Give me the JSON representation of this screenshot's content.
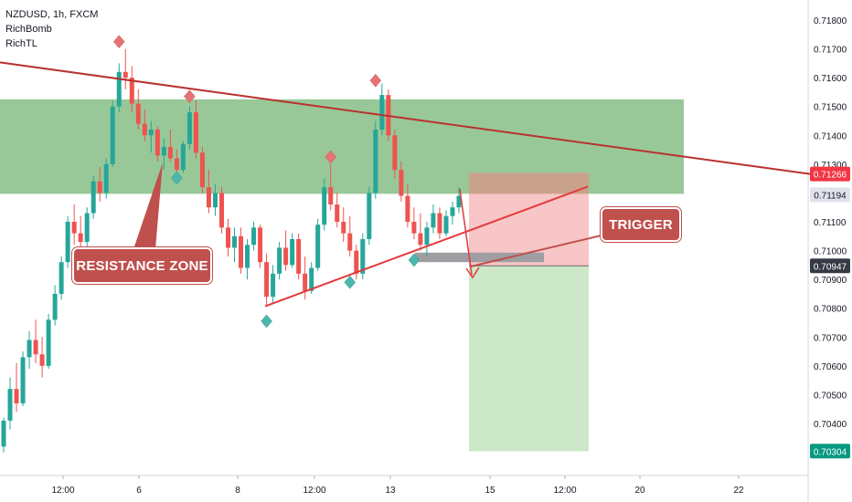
{
  "legend": {
    "symbol_line": "NZDUSD, 1h, FXCM",
    "indicator_1": "RichBomb",
    "indicator_2": "RichTL"
  },
  "annotations": {
    "resistance_label": "RESISTANCE ZONE",
    "trigger_label": "TRIGGER"
  },
  "price_tags": [
    {
      "label": "0.71266",
      "value": 0.71266,
      "bg": "#f23645",
      "fg": "#ffffff"
    },
    {
      "label": "0.71194",
      "value": 0.71194,
      "bg": "#e0e3eb",
      "fg": "#131722"
    },
    {
      "label": "0.70947",
      "value": 0.70947,
      "bg": "#363a45",
      "fg": "#ffffff"
    },
    {
      "label": "0.70304",
      "value": 0.70304,
      "bg": "#089981",
      "fg": "#ffffff"
    }
  ],
  "chart_data": {
    "type": "candlestick",
    "symbol": "NZDUSD",
    "timeframe": "1h",
    "source": "FXCM",
    "y_axis": {
      "range": [
        0.703,
        0.719
      ],
      "ticks": [
        "0.71800",
        "0.71700",
        "0.71600",
        "0.71500",
        "0.71400",
        "0.71300",
        "0.71200",
        "0.71100",
        "0.71000",
        "0.70900",
        "0.70800",
        "0.70700",
        "0.70600",
        "0.70500",
        "0.70400"
      ]
    },
    "x_axis": {
      "ticks": [
        "12:00",
        "6",
        "8",
        "12:00",
        "13",
        "15",
        "12:00",
        "20",
        "22"
      ]
    },
    "zones": {
      "resistance_zone": {
        "top": 0.71525,
        "bottom": 0.71197,
        "color": "#8dc28d"
      },
      "stop_loss_box": {
        "top": 0.7127,
        "bottom": 0.70947,
        "color": "#f7bcbc"
      },
      "take_profit_box": {
        "top": 0.70947,
        "bottom": 0.70304,
        "color": "#cce8c8"
      },
      "trigger_bar": {
        "top": 0.70993,
        "bottom": 0.7096,
        "color": "#9e9ea3"
      }
    },
    "lines": [
      {
        "name": "descending trendline",
        "from": [
          0,
          0.71653
        ],
        "to": [
          888,
          0.71265
        ],
        "color": "#b8312f"
      },
      {
        "name": "ascending support",
        "from": [
          290,
          0.70807
        ],
        "to": [
          643,
          0.71222
        ],
        "color": "#e33a3a"
      }
    ],
    "candles": [
      [
        0,
        0.7032,
        0.7042,
        0.703,
        0.7041
      ],
      [
        0,
        0.7041,
        0.7056,
        0.7038,
        0.7052
      ],
      [
        0,
        0.7052,
        0.7061,
        0.7044,
        0.7047
      ],
      [
        0,
        0.7047,
        0.7065,
        0.7046,
        0.7063
      ],
      [
        0,
        0.7063,
        0.7072,
        0.7059,
        0.7069
      ],
      [
        0,
        0.7069,
        0.7076,
        0.7061,
        0.7064
      ],
      [
        0,
        0.7064,
        0.707,
        0.7056,
        0.706
      ],
      [
        0,
        0.706,
        0.7078,
        0.7059,
        0.7076
      ],
      [
        0,
        0.7076,
        0.7088,
        0.7074,
        0.7085
      ],
      [
        0,
        0.7085,
        0.7098,
        0.7083,
        0.7096
      ],
      [
        0,
        0.7096,
        0.7112,
        0.7094,
        0.711
      ],
      [
        0,
        0.711,
        0.7116,
        0.7102,
        0.7106
      ],
      [
        0,
        0.7106,
        0.7112,
        0.71,
        0.7103
      ],
      [
        0,
        0.7103,
        0.7115,
        0.7101,
        0.7113
      ],
      [
        0,
        0.7113,
        0.7126,
        0.7111,
        0.7124
      ],
      [
        0,
        0.7124,
        0.7129,
        0.7117,
        0.712
      ],
      [
        0,
        0.712,
        0.7132,
        0.7118,
        0.713
      ],
      [
        0,
        0.713,
        0.7152,
        0.7129,
        0.715
      ],
      [
        0,
        0.715,
        0.7165,
        0.7148,
        0.7162
      ],
      [
        0,
        0.7162,
        0.717,
        0.7156,
        0.716
      ],
      [
        0,
        0.716,
        0.7164,
        0.7148,
        0.7151
      ],
      [
        0,
        0.7151,
        0.7156,
        0.7142,
        0.7144
      ],
      [
        0,
        0.7144,
        0.7149,
        0.7138,
        0.714
      ],
      [
        0,
        0.714,
        0.7145,
        0.7134,
        0.7142
      ],
      [
        0,
        0.7142,
        0.7143,
        0.7131,
        0.7133
      ],
      [
        0,
        0.7133,
        0.7139,
        0.7128,
        0.7136
      ],
      [
        0,
        0.7136,
        0.7142,
        0.7131,
        0.7132
      ],
      [
        0,
        0.7132,
        0.7135,
        0.7126,
        0.7128
      ],
      [
        0,
        0.7128,
        0.7138,
        0.7127,
        0.7137
      ],
      [
        0,
        0.7137,
        0.715,
        0.7135,
        0.7148
      ],
      [
        0,
        0.7148,
        0.7152,
        0.7132,
        0.7134
      ],
      [
        0,
        0.7134,
        0.7136,
        0.712,
        0.7122
      ],
      [
        0,
        0.7122,
        0.7128,
        0.7113,
        0.7115
      ],
      [
        0,
        0.7115,
        0.7123,
        0.7112,
        0.712
      ],
      [
        0,
        0.712,
        0.7122,
        0.7106,
        0.7108
      ],
      [
        0,
        0.7108,
        0.7111,
        0.7098,
        0.7101
      ],
      [
        0,
        0.7101,
        0.7108,
        0.7096,
        0.7105
      ],
      [
        0,
        0.7105,
        0.7108,
        0.7092,
        0.7094
      ],
      [
        0,
        0.7094,
        0.7104,
        0.709,
        0.7102
      ],
      [
        0,
        0.7102,
        0.711,
        0.71,
        0.7108
      ],
      [
        0,
        0.7108,
        0.7109,
        0.7094,
        0.7096
      ],
      [
        0,
        0.7096,
        0.7099,
        0.7081,
        0.7084
      ],
      [
        0,
        0.7084,
        0.7095,
        0.7082,
        0.7092
      ],
      [
        0,
        0.7092,
        0.7103,
        0.709,
        0.7101
      ],
      [
        0,
        0.7101,
        0.7107,
        0.7093,
        0.7095
      ],
      [
        0,
        0.7095,
        0.7106,
        0.7094,
        0.7104
      ],
      [
        0,
        0.7104,
        0.7106,
        0.709,
        0.7092
      ],
      [
        0,
        0.7092,
        0.7098,
        0.7083,
        0.7086
      ],
      [
        0,
        0.7086,
        0.7096,
        0.7085,
        0.7094
      ],
      [
        0,
        0.7094,
        0.7111,
        0.7093,
        0.7109
      ],
      [
        0,
        0.7109,
        0.7125,
        0.7107,
        0.7122
      ],
      [
        0,
        0.7122,
        0.713,
        0.7114,
        0.7116
      ],
      [
        0,
        0.7116,
        0.712,
        0.7108,
        0.711
      ],
      [
        0,
        0.711,
        0.7115,
        0.7103,
        0.7106
      ],
      [
        0,
        0.7106,
        0.7112,
        0.7098,
        0.71
      ],
      [
        0,
        0.71,
        0.7102,
        0.709,
        0.7092
      ],
      [
        0,
        0.7092,
        0.7106,
        0.709,
        0.7104
      ],
      [
        0,
        0.7104,
        0.7122,
        0.7102,
        0.712
      ],
      [
        0,
        0.712,
        0.7145,
        0.7118,
        0.7142
      ],
      [
        0,
        0.7142,
        0.7158,
        0.714,
        0.7154
      ],
      [
        0,
        0.7154,
        0.7156,
        0.7138,
        0.714
      ],
      [
        0,
        0.714,
        0.7142,
        0.7125,
        0.7128
      ],
      [
        0,
        0.7128,
        0.7131,
        0.7117,
        0.7119
      ],
      [
        0,
        0.7119,
        0.7123,
        0.7108,
        0.711
      ],
      [
        0,
        0.711,
        0.7115,
        0.7104,
        0.7106
      ],
      [
        0,
        0.7106,
        0.7113,
        0.71,
        0.7102
      ],
      [
        0,
        0.7102,
        0.711,
        0.7098,
        0.7108
      ],
      [
        0,
        0.7108,
        0.7116,
        0.7106,
        0.7113
      ],
      [
        0,
        0.7113,
        0.7115,
        0.7104,
        0.7106
      ],
      [
        0,
        0.7106,
        0.7114,
        0.7105,
        0.7112
      ],
      [
        0,
        0.7112,
        0.7117,
        0.7109,
        0.7115
      ],
      [
        0,
        0.7115,
        0.7122,
        0.7113,
        0.7119
      ]
    ],
    "markers": [
      {
        "type": "down",
        "value": 0.71725,
        "candle": 18
      },
      {
        "type": "down",
        "value": 0.71535,
        "candle": 29
      },
      {
        "type": "down",
        "value": 0.71325,
        "candle": 51
      },
      {
        "type": "down",
        "value": 0.7159,
        "candle": 58
      },
      {
        "type": "up",
        "value": 0.71252,
        "candle": 27
      },
      {
        "type": "up",
        "value": 0.70755,
        "candle": 41
      },
      {
        "type": "up",
        "value": 0.7089,
        "candle": 54
      },
      {
        "type": "up",
        "value": 0.70967,
        "candle": 64
      }
    ]
  }
}
